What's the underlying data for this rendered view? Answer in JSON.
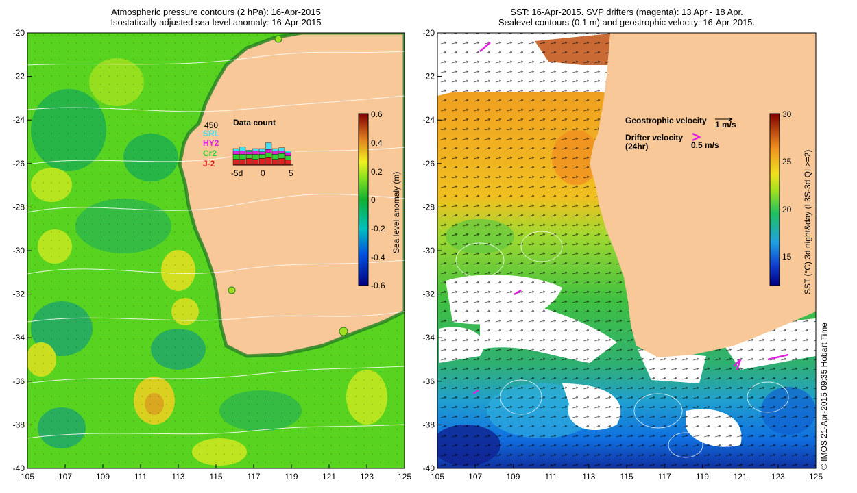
{
  "left_panel": {
    "title_line1": "Atmospheric pressure contours (2 hPa): 16-Apr-2015",
    "title_line2": "Isostatically adjusted sea level anomaly: 16-Apr-2015",
    "colorbar": {
      "label": "Sea level anomaly (m)",
      "ticks": [
        "0.6",
        "0.4",
        "0.2",
        "0",
        "-0.2",
        "-0.4",
        "-0.6"
      ]
    },
    "inset": {
      "title": "Data count",
      "ymax_label": "450",
      "satellites": [
        {
          "name": "SRL",
          "color": "#40e0f0"
        },
        {
          "name": "HY2",
          "color": "#e020e0"
        },
        {
          "name": "Cr2",
          "color": "#30d030"
        },
        {
          "name": "J-2",
          "color": "#e02020"
        }
      ],
      "x_ticks": [
        "-5d",
        "0",
        "5"
      ]
    }
  },
  "right_panel": {
    "title_line1": "SST: 16-Apr-2015. SVP drifters (magenta): 13 Apr - 18 Apr.",
    "title_line2": "Sealevel contours (0.1 m) and geostrophic velocity: 16-Apr-2015.",
    "legend": {
      "geo_label": "Geostrophic velocity",
      "geo_scale": "1 m/s",
      "drifter_label_1": "Drifter velocity",
      "drifter_label_2": "(24hr)",
      "drifter_scale": "0.5 m/s"
    },
    "colorbar": {
      "label": "SST (°C) 3d night&day (L3S-3d QL>=2)",
      "ticks": [
        "30",
        "25",
        "20",
        "15"
      ]
    }
  },
  "axes": {
    "x_ticks": [
      "105",
      "107",
      "109",
      "111",
      "113",
      "115",
      "117",
      "119",
      "121",
      "123",
      "125"
    ],
    "y_ticks": [
      "-20",
      "-22",
      "-24",
      "-26",
      "-28",
      "-30",
      "-32",
      "-34",
      "-36",
      "-38",
      "-40"
    ]
  },
  "credit": "© IMOS 21-Apr-2015 09:35 Hobart Time",
  "colors": {
    "land": "#f8c898",
    "sla_base": "#58d420",
    "sst_base": "#30c040"
  }
}
